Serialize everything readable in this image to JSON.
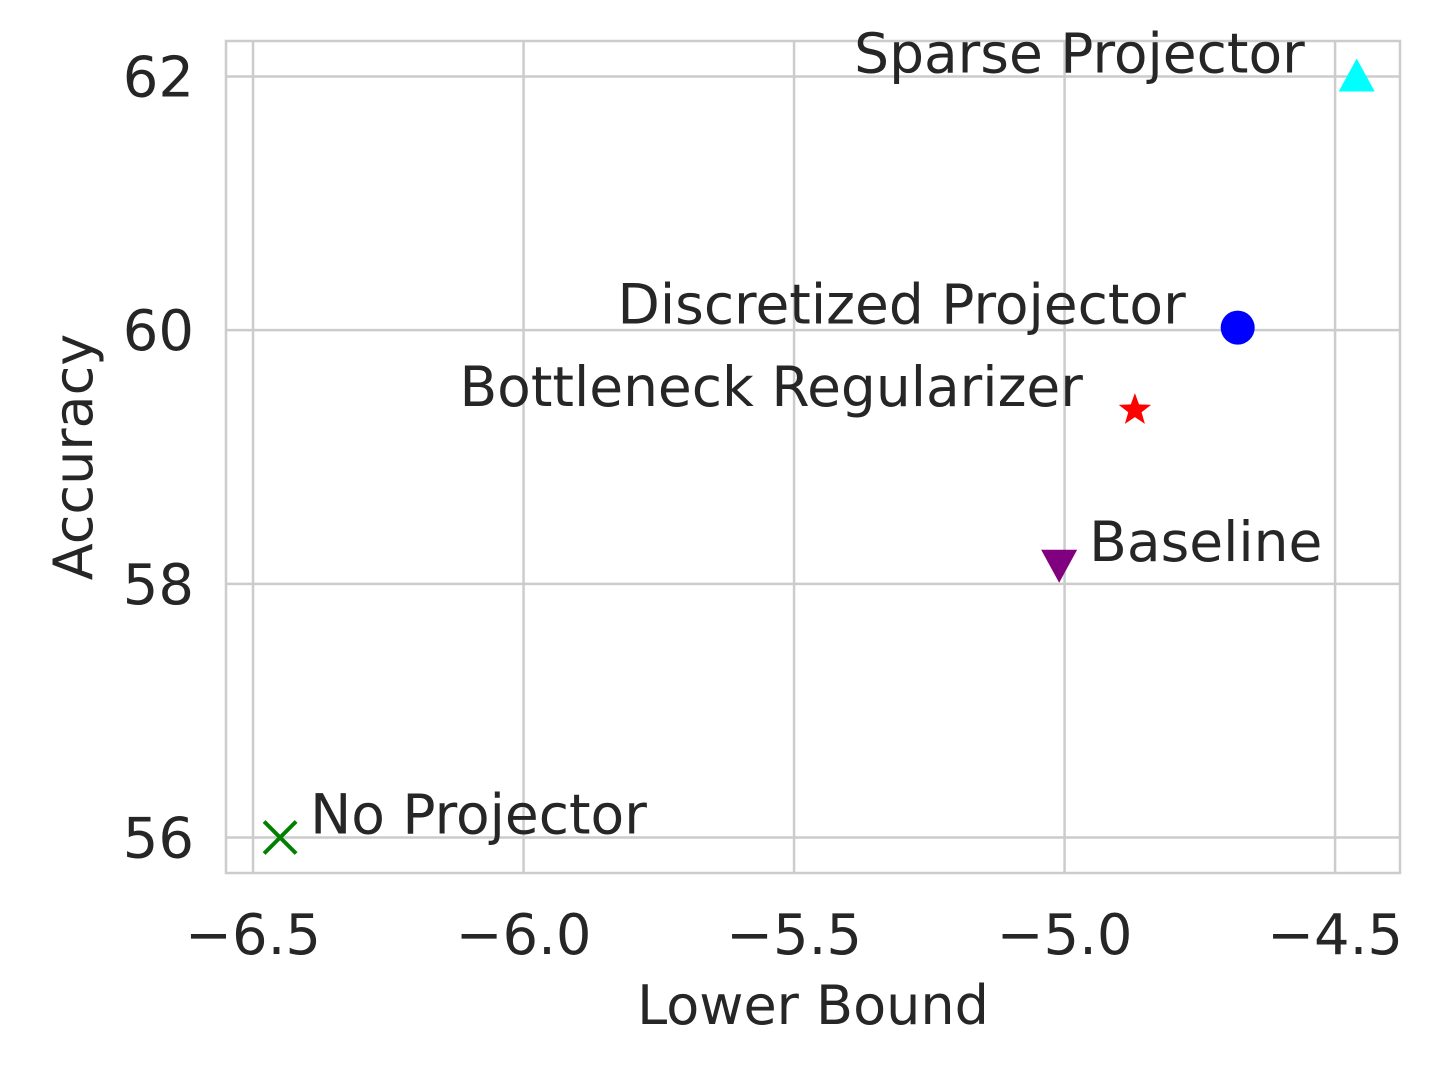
{
  "chart_data": {
    "type": "scatter",
    "title": "",
    "xlabel": "Lower Bound",
    "ylabel": "Accuracy",
    "xlim": [
      -6.55,
      -4.38
    ],
    "ylim": [
      55.72,
      62.28
    ],
    "xticks": [
      -6.5,
      -6.0,
      -5.5,
      -5.0,
      -4.5
    ],
    "xtick_labels": [
      "−6.5",
      "−6.0",
      "−5.5",
      "−5.0",
      "−4.5"
    ],
    "yticks": [
      56,
      58,
      60,
      62
    ],
    "ytick_labels": [
      "56",
      "58",
      "60",
      "62"
    ],
    "grid": true,
    "legend": "none",
    "points": [
      {
        "label": "No Projector",
        "x": -6.45,
        "y": 56.0,
        "marker": "x",
        "color": "#008000",
        "label_side": "right"
      },
      {
        "label": "Baseline",
        "x": -5.01,
        "y": 58.15,
        "marker": "triangle-down",
        "color": "#800080",
        "label_side": "right"
      },
      {
        "label": "Bottleneck Regularizer",
        "x": -4.87,
        "y": 59.37,
        "marker": "star",
        "color": "#ff0000",
        "label_side": "left"
      },
      {
        "label": "Discretized Projector",
        "x": -4.68,
        "y": 60.02,
        "marker": "circle",
        "color": "#0000ff",
        "label_side": "left"
      },
      {
        "label": "Sparse Projector",
        "x": -4.46,
        "y": 62.0,
        "marker": "triangle-up",
        "color": "#00ffff",
        "label_side": "left"
      }
    ]
  }
}
